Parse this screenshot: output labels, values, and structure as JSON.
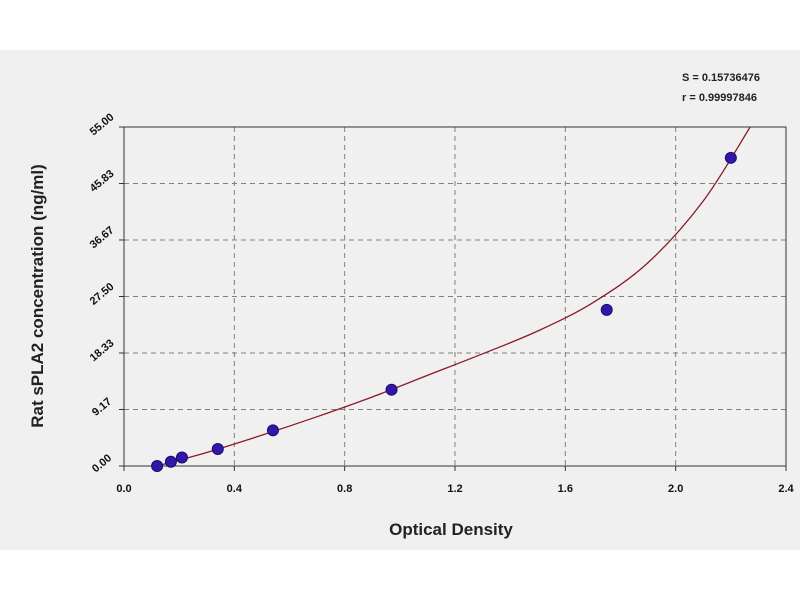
{
  "stats": {
    "line1": "S = 0.15736476",
    "line2": "r = 0.99997846"
  },
  "chart_data": {
    "type": "scatter",
    "title": "",
    "xlabel": "Optical Density",
    "ylabel": "Rat sPLA2 concentration (ng/ml)",
    "xlim": [
      0.0,
      2.4
    ],
    "ylim": [
      0.0,
      55.0
    ],
    "x_ticks": [
      0.0,
      0.4,
      0.8,
      1.2,
      1.6,
      2.0,
      2.4
    ],
    "x_tick_labels": [
      "0.0",
      "0.4",
      "0.8",
      "1.2",
      "1.6",
      "2.0",
      "2.4"
    ],
    "y_ticks": [
      0.0,
      9.17,
      18.33,
      27.5,
      36.67,
      45.83,
      55.0
    ],
    "y_tick_labels": [
      "0.00",
      "9.17",
      "18.33",
      "27.50",
      "36.67",
      "45.83",
      "55.00"
    ],
    "grid": true,
    "colors": {
      "points": "#3318a8",
      "curve": "#8b1a2a",
      "grid": "#808080"
    },
    "series": [
      {
        "x": [
          0.12,
          0.17,
          0.21,
          0.34,
          0.54,
          0.97,
          1.75,
          2.2
        ],
        "y": [
          0.0,
          0.69,
          1.38,
          2.75,
          5.79,
          12.38,
          25.33,
          50.0
        ]
      }
    ],
    "fit_curve": {
      "x": [
        0.12,
        0.3,
        0.5,
        0.7,
        0.9,
        1.1,
        1.3,
        1.5,
        1.7,
        1.9,
        2.1,
        2.27
      ],
      "y": [
        0.0,
        2.2,
        5.0,
        8.0,
        11.2,
        14.7,
        18.2,
        21.9,
        26.5,
        33.0,
        43.0,
        55.0
      ]
    }
  }
}
